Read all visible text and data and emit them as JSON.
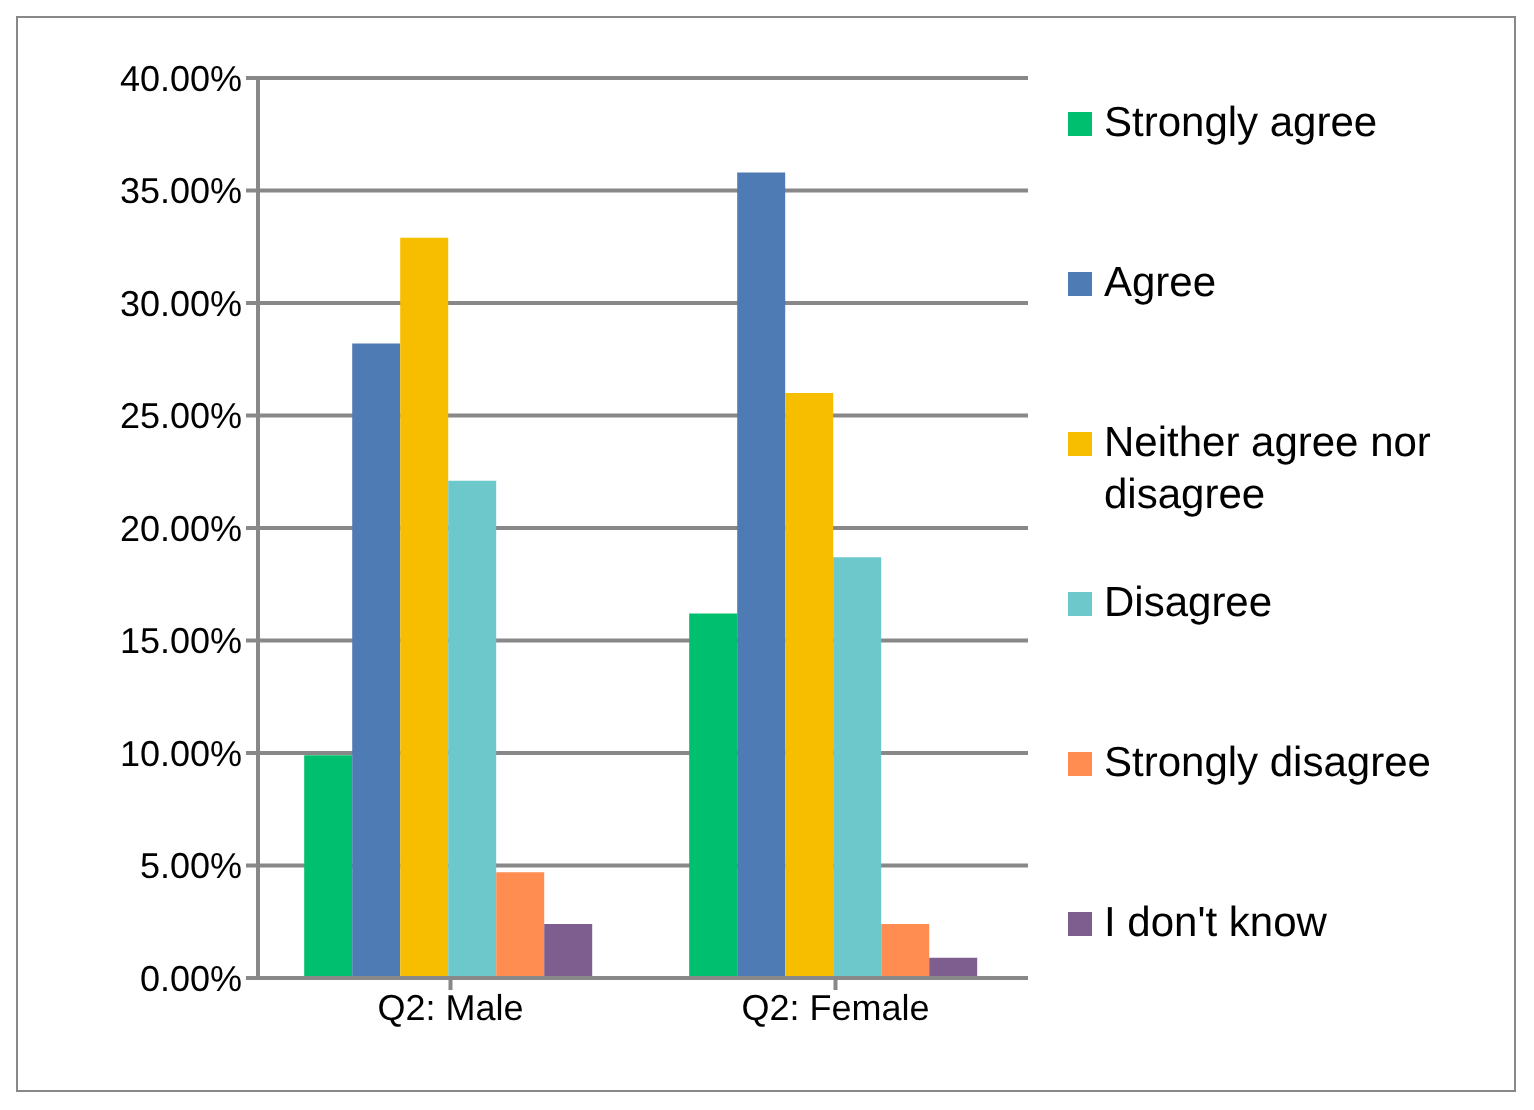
{
  "chart_data": {
    "type": "bar",
    "categories": [
      "Q2: Male",
      "Q2: Female"
    ],
    "series": [
      {
        "name": "Strongly agree",
        "color": "#00bf6f",
        "values": [
          9.9,
          16.2
        ]
      },
      {
        "name": "Agree",
        "color": "#4f7bb5",
        "values": [
          28.2,
          35.8
        ]
      },
      {
        "name": "Neither agree nor disagree",
        "color": "#f7be00",
        "values": [
          32.9,
          26.0
        ]
      },
      {
        "name": "Disagree",
        "color": "#6dc8cc",
        "values": [
          22.1,
          18.7
        ]
      },
      {
        "name": "Strongly disagree",
        "color": "#ff8c50",
        "values": [
          4.7,
          2.4
        ]
      },
      {
        "name": "I don't know",
        "color": "#7d5e8f",
        "values": [
          2.4,
          0.9
        ]
      }
    ],
    "ylim": [
      0,
      40
    ],
    "yticks": [
      {
        "value": 0,
        "label": "0.00%"
      },
      {
        "value": 5,
        "label": "5.00%"
      },
      {
        "value": 10,
        "label": "10.00%"
      },
      {
        "value": 15,
        "label": "15.00%"
      },
      {
        "value": 20,
        "label": "20.00%"
      },
      {
        "value": 25,
        "label": "25.00%"
      },
      {
        "value": 30,
        "label": "30.00%"
      },
      {
        "value": 35,
        "label": "35.00%"
      },
      {
        "value": 40,
        "label": "40.00%"
      }
    ],
    "grid": "y",
    "legend": "right"
  }
}
